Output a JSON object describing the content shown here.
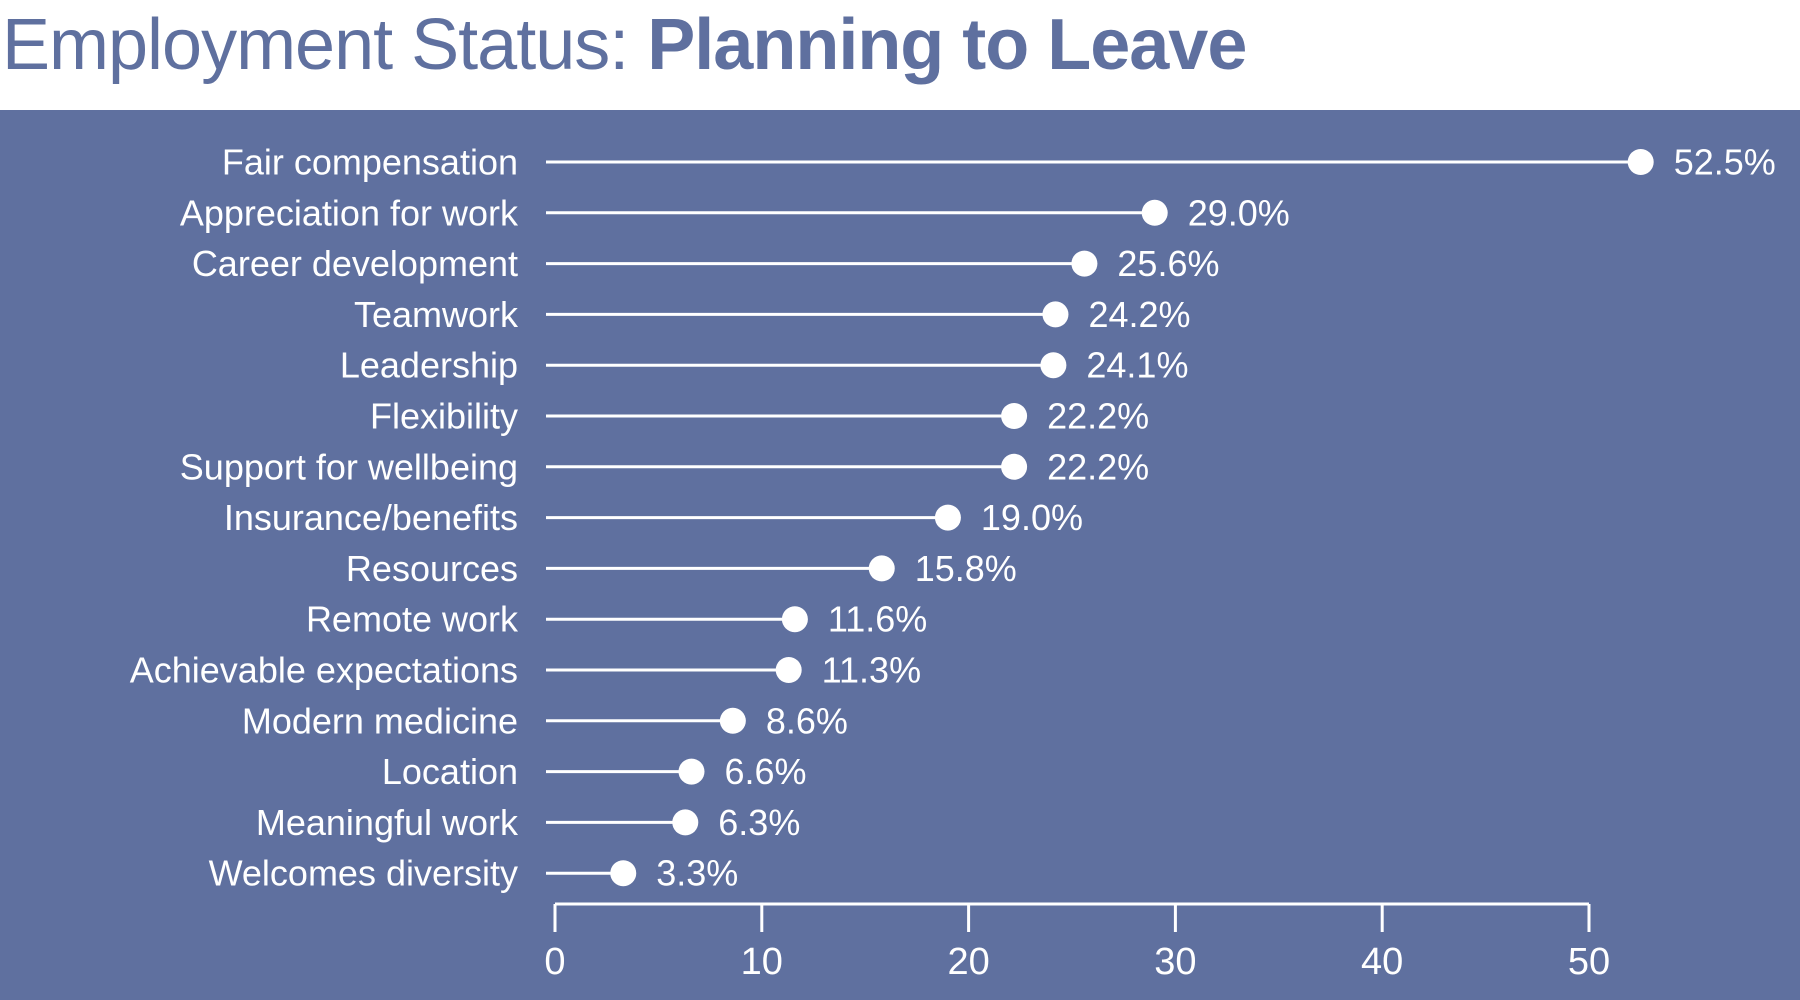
{
  "title": {
    "prefix": "Employment Status: ",
    "emphasis": "Planning to Leave"
  },
  "colors": {
    "panel_background": "#5f709f",
    "marks": "#ffffff",
    "title": "#5f709f"
  },
  "chart_data": {
    "type": "lollipop",
    "orientation": "horizontal",
    "categories": [
      "Fair compensation",
      "Appreciation for work",
      "Career development",
      "Teamwork",
      "Leadership",
      "Flexibility",
      "Support for wellbeing",
      "Insurance/benefits",
      "Resources",
      "Remote work",
      "Achievable expectations",
      "Modern medicine",
      "Location",
      "Meaningful work",
      "Welcomes diversity"
    ],
    "values": [
      52.5,
      29.0,
      25.6,
      24.2,
      24.1,
      22.2,
      22.2,
      19.0,
      15.8,
      11.6,
      11.3,
      8.6,
      6.6,
      6.3,
      3.3
    ],
    "value_labels": [
      "52.5%",
      "29.0%",
      "25.6%",
      "24.2%",
      "24.1%",
      "22.2%",
      "22.2%",
      "19.0%",
      "15.8%",
      "11.6%",
      "11.3%",
      "8.6%",
      "6.6%",
      "6.3%",
      "3.3%"
    ],
    "xlim": [
      0,
      50
    ],
    "xticks": [
      0,
      10,
      20,
      30,
      40,
      50
    ],
    "xtick_labels": [
      "0",
      "10",
      "20",
      "30",
      "40",
      "50"
    ],
    "grid": false,
    "legend": "none"
  }
}
